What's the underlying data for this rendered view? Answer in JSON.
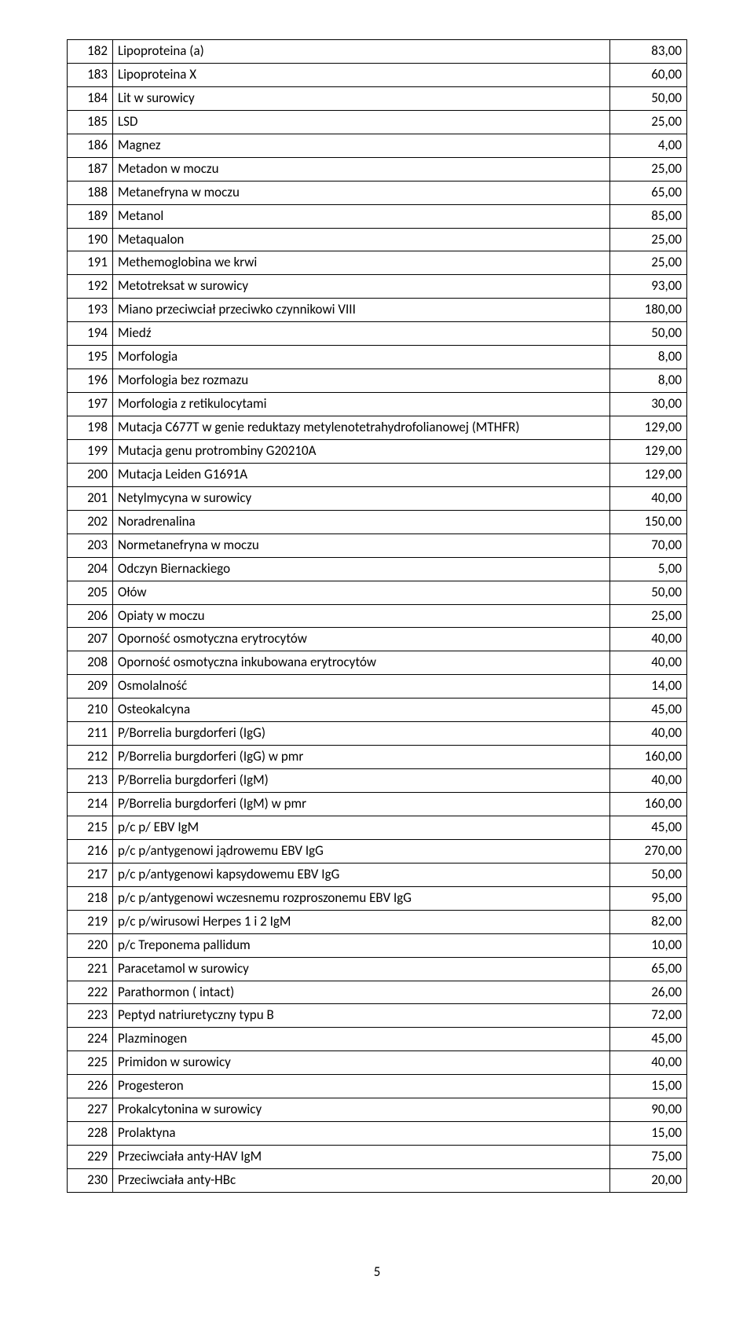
{
  "page_number": "5",
  "table": {
    "rows": [
      {
        "num": "182",
        "name": "Lipoproteina (a)",
        "value": "83,00"
      },
      {
        "num": "183",
        "name": "Lipoproteina X",
        "value": "60,00"
      },
      {
        "num": "184",
        "name": "Lit w surowicy",
        "value": "50,00"
      },
      {
        "num": "185",
        "name": "LSD",
        "value": "25,00"
      },
      {
        "num": "186",
        "name": "Magnez",
        "value": "4,00"
      },
      {
        "num": "187",
        "name": "Metadon w moczu",
        "value": "25,00"
      },
      {
        "num": "188",
        "name": "Metanefryna w moczu",
        "value": "65,00"
      },
      {
        "num": "189",
        "name": "Metanol",
        "value": "85,00"
      },
      {
        "num": "190",
        "name": "Metaqualon",
        "value": "25,00"
      },
      {
        "num": "191",
        "name": "Methemoglobina we krwi",
        "value": "25,00"
      },
      {
        "num": "192",
        "name": "Metotreksat w surowicy",
        "value": "93,00"
      },
      {
        "num": "193",
        "name": "Miano przeciwciał przeciwko czynnikowi VIII",
        "value": "180,00"
      },
      {
        "num": "194",
        "name": "Miedź",
        "value": "50,00"
      },
      {
        "num": "195",
        "name": "Morfologia",
        "value": "8,00"
      },
      {
        "num": "196",
        "name": "Morfologia bez rozmazu",
        "value": "8,00"
      },
      {
        "num": "197",
        "name": "Morfologia z retikulocytami",
        "value": "30,00"
      },
      {
        "num": "198",
        "name": "Mutacja C677T w genie reduktazy metylenotetrahydrofolianowej (MTHFR)",
        "value": "129,00"
      },
      {
        "num": "199",
        "name": "Mutacja genu protrombiny G20210A",
        "value": "129,00"
      },
      {
        "num": "200",
        "name": "Mutacja Leiden G1691A",
        "value": "129,00"
      },
      {
        "num": "201",
        "name": "Netylmycyna w surowicy",
        "value": "40,00"
      },
      {
        "num": "202",
        "name": "Noradrenalina",
        "value": "150,00"
      },
      {
        "num": "203",
        "name": "Normetanefryna w moczu",
        "value": "70,00"
      },
      {
        "num": "204",
        "name": "Odczyn Biernackiego",
        "value": "5,00"
      },
      {
        "num": "205",
        "name": "Ołów",
        "value": "50,00"
      },
      {
        "num": "206",
        "name": "Opiaty w moczu",
        "value": "25,00"
      },
      {
        "num": "207",
        "name": "Oporność osmotyczna erytrocytów",
        "value": "40,00"
      },
      {
        "num": "208",
        "name": "Oporność osmotyczna inkubowana erytrocytów",
        "value": "40,00"
      },
      {
        "num": "209",
        "name": "Osmolalność",
        "value": "14,00"
      },
      {
        "num": "210",
        "name": "Osteokalcyna",
        "value": "45,00"
      },
      {
        "num": "211",
        "name": "P/Borrelia burgdorferi (IgG)",
        "value": "40,00"
      },
      {
        "num": "212",
        "name": "P/Borrelia burgdorferi (IgG) w pmr",
        "value": "160,00"
      },
      {
        "num": "213",
        "name": "P/Borrelia burgdorferi (IgM)",
        "value": "40,00"
      },
      {
        "num": "214",
        "name": "P/Borrelia burgdorferi (IgM) w pmr",
        "value": "160,00"
      },
      {
        "num": "215",
        "name": "p/c p/ EBV IgM",
        "value": "45,00"
      },
      {
        "num": "216",
        "name": "p/c p/antygenowi jądrowemu EBV IgG",
        "value": "270,00"
      },
      {
        "num": "217",
        "name": "p/c p/antygenowi kapsydowemu EBV IgG",
        "value": "50,00"
      },
      {
        "num": "218",
        "name": "p/c p/antygenowi wczesnemu rozproszonemu EBV IgG",
        "value": "95,00"
      },
      {
        "num": "219",
        "name": "p/c p/wirusowi Herpes 1 i 2 IgM",
        "value": "82,00"
      },
      {
        "num": "220",
        "name": "p/c Treponema pallidum",
        "value": "10,00"
      },
      {
        "num": "221",
        "name": "Paracetamol w surowicy",
        "value": "65,00"
      },
      {
        "num": "222",
        "name": "Parathormon ( intact)",
        "value": "26,00"
      },
      {
        "num": "223",
        "name": "Peptyd natriuretyczny typu B",
        "value": "72,00"
      },
      {
        "num": "224",
        "name": "Plazminogen",
        "value": "45,00"
      },
      {
        "num": "225",
        "name": "Primidon w surowicy",
        "value": "40,00"
      },
      {
        "num": "226",
        "name": "Progesteron",
        "value": "15,00"
      },
      {
        "num": "227",
        "name": "Prokalcytonina w surowicy",
        "value": "90,00"
      },
      {
        "num": "228",
        "name": "Prolaktyna",
        "value": "15,00"
      },
      {
        "num": "229",
        "name": "Przeciwciała anty-HAV IgM",
        "value": "75,00"
      },
      {
        "num": "230",
        "name": "Przeciwciała anty-HBc",
        "value": "20,00"
      }
    ]
  }
}
